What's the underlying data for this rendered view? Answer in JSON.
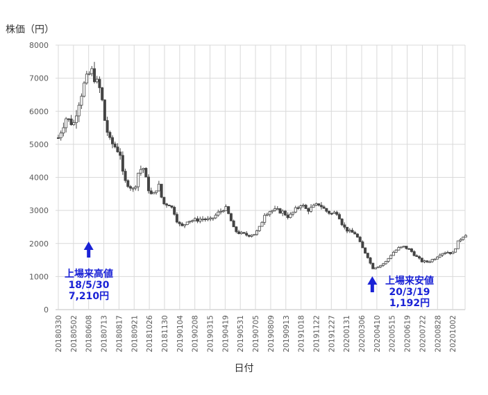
{
  "chart_data": {
    "type": "candlestick",
    "ylabel": "株価（円）",
    "xlabel": "日付",
    "ylim": [
      0,
      8000
    ],
    "yticks": [
      0,
      1000,
      2000,
      3000,
      4000,
      5000,
      6000,
      7000,
      8000
    ],
    "grid": true,
    "xtick_labels": [
      "20180330",
      "20180502",
      "20180608",
      "20180713",
      "20180817",
      "20180921",
      "20181026",
      "20181130",
      "20190104",
      "20190208",
      "20190315",
      "20190419",
      "20190531",
      "20190705",
      "20190809",
      "20190913",
      "20191018",
      "20191122",
      "20191227",
      "20200131",
      "20200306",
      "20200410",
      "20200515",
      "20200619",
      "20200722",
      "20200828",
      "20201002"
    ],
    "price_path": [
      [
        0,
        5200
      ],
      [
        0.5,
        5800
      ],
      [
        1,
        5600
      ],
      [
        1.3,
        6200
      ],
      [
        1.7,
        6800
      ],
      [
        2.0,
        7100
      ],
      [
        2.2,
        7210
      ],
      [
        2.5,
        6900
      ],
      [
        2.8,
        6600
      ],
      [
        3.1,
        5600
      ],
      [
        3.4,
        5100
      ],
      [
        3.8,
        4900
      ],
      [
        4.1,
        4700
      ],
      [
        4.3,
        3900
      ],
      [
        4.6,
        3800
      ],
      [
        5.0,
        3600
      ],
      [
        5.3,
        4200
      ],
      [
        5.6,
        4300
      ],
      [
        5.9,
        3700
      ],
      [
        6.2,
        3400
      ],
      [
        6.6,
        3800
      ],
      [
        6.9,
        3200
      ],
      [
        7.3,
        3200
      ],
      [
        7.6,
        3000
      ],
      [
        7.9,
        2600
      ],
      [
        8.2,
        2500
      ],
      [
        8.5,
        2700
      ],
      [
        9.0,
        2700
      ],
      [
        9.5,
        2750
      ],
      [
        10.0,
        2700
      ],
      [
        10.5,
        2900
      ],
      [
        11.0,
        3100
      ],
      [
        11.3,
        2800
      ],
      [
        11.6,
        2400
      ],
      [
        12.0,
        2300
      ],
      [
        12.5,
        2250
      ],
      [
        13.0,
        2300
      ],
      [
        13.3,
        2500
      ],
      [
        13.6,
        2900
      ],
      [
        14.0,
        3000
      ],
      [
        14.4,
        3000
      ],
      [
        14.8,
        2950
      ],
      [
        15.2,
        2800
      ],
      [
        15.6,
        3000
      ],
      [
        16.0,
        3200
      ],
      [
        16.4,
        3000
      ],
      [
        16.8,
        3100
      ],
      [
        17.2,
        3200
      ],
      [
        17.6,
        3000
      ],
      [
        18.0,
        2900
      ],
      [
        18.4,
        2950
      ],
      [
        18.8,
        2500
      ],
      [
        19.2,
        2350
      ],
      [
        19.6,
        2300
      ],
      [
        20.0,
        1900
      ],
      [
        20.4,
        1600
      ],
      [
        20.7,
        1250
      ],
      [
        21.0,
        1300
      ],
      [
        21.3,
        1350
      ],
      [
        21.6,
        1450
      ],
      [
        22.0,
        1700
      ],
      [
        22.4,
        1850
      ],
      [
        22.8,
        1900
      ],
      [
        23.2,
        1800
      ],
      [
        23.6,
        1600
      ],
      [
        24.0,
        1450
      ],
      [
        24.4,
        1450
      ],
      [
        24.8,
        1550
      ],
      [
        25.2,
        1700
      ],
      [
        25.6,
        1750
      ],
      [
        26.0,
        1700
      ],
      [
        26.3,
        2000
      ],
      [
        26.6,
        2200
      ],
      [
        26.9,
        2300
      ]
    ],
    "annotations": [
      {
        "line1": "上場来高値",
        "line2": "18/5/30",
        "line3": "7,210円",
        "x": 2.0,
        "value": 7210
      },
      {
        "line1": "上場来安値",
        "line2": "20/3/19",
        "line3": "1,192円",
        "x": 20.7,
        "value": 1192
      }
    ],
    "colors": {
      "candle": "#444444",
      "grid": "#d9d9d9",
      "axis": "#bfbfbf",
      "annotation": "#1a22d6"
    }
  }
}
